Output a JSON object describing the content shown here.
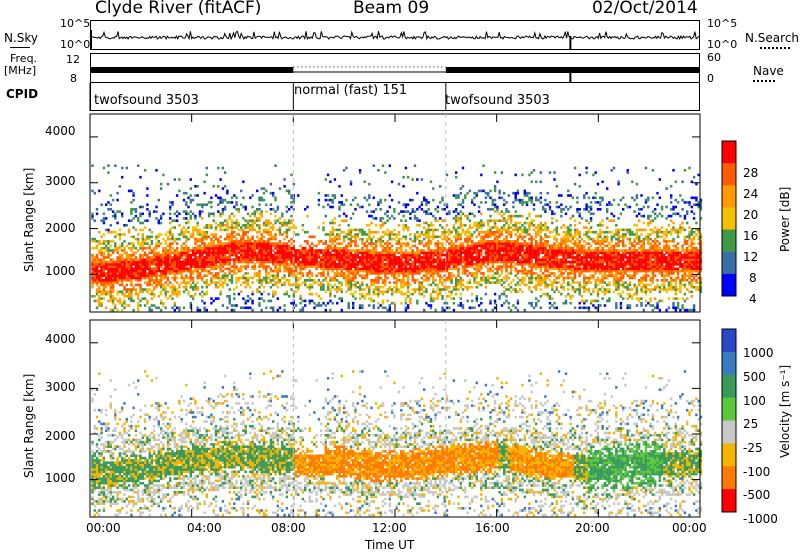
{
  "header": {
    "site": "Clyde River (fitACF)",
    "beam": "Beam 09",
    "date": "02/Oct/2014"
  },
  "top_panels": {
    "nsky_label": "N.Sky",
    "nsky_ticks": [
      "10^5",
      "10^0"
    ],
    "nsearch_label": "N.Search",
    "nsearch_ticks": [
      "10^5",
      "10^0"
    ],
    "freq_label_line1": "Freq.",
    "freq_label_line2": "[MHz]",
    "freq_ticks": [
      "12",
      "8"
    ],
    "nave_label": "Nave",
    "nave_ticks": [
      "60",
      "0"
    ],
    "cpid_label": "CPID",
    "cpid_segments": [
      {
        "label": "twofsound 3503",
        "start_h": 0,
        "end_h": 8
      },
      {
        "label": "normal (fast) 151",
        "start_h": 8,
        "end_h": 14
      },
      {
        "label": "twofsound 3503",
        "start_h": 14,
        "end_h": 24
      }
    ]
  },
  "chart_data": [
    {
      "type": "heatmap",
      "panel": "power",
      "ylabel": "Slant Range [km]",
      "ylim": [
        180,
        4500
      ],
      "yticks": [
        "1000",
        "2000",
        "3000",
        "4000"
      ],
      "xlim": [
        0,
        24
      ],
      "colorbar_label": "Power [dB]",
      "colorbar_ticks": [
        "28",
        "24",
        "20",
        "16",
        "12",
        "8",
        "4"
      ],
      "colors": [
        "#ff0000",
        "#ff5a00",
        "#ff9a00",
        "#f4c000",
        "#3e9a46",
        "#3a6ea8",
        "#0000ff"
      ],
      "description_series": [
        {
          "name": "main band",
          "x": [
            0,
            2,
            4,
            6,
            8,
            10,
            12,
            14,
            16,
            18,
            20,
            22,
            24
          ],
          "y": [
            1000,
            1100,
            1300,
            1500,
            1400,
            1300,
            1200,
            1300,
            1500,
            1350,
            1250,
            1300,
            1250
          ]
        }
      ]
    },
    {
      "type": "heatmap",
      "panel": "velocity",
      "ylabel": "Slant Range [km]",
      "ylim": [
        180,
        4500
      ],
      "yticks": [
        "1000",
        "2000",
        "3000",
        "4000"
      ],
      "xlim": [
        0,
        24
      ],
      "xticks": [
        "00:00",
        "04:00",
        "08:00",
        "12:00",
        "16:00",
        "20:00",
        "00:00"
      ],
      "xlabel": "Time UT",
      "colorbar_label": "Velocity [m s⁻¹]",
      "colorbar_ticks": [
        "1000",
        "500",
        "100",
        "25",
        "-25",
        "-100",
        "-500",
        "-1000"
      ],
      "colors": [
        "#2848c8",
        "#3a7ac0",
        "#3a9a5a",
        "#5ac83a",
        "#c8c8c8",
        "#f4b400",
        "#ff7a00",
        "#ff0000"
      ],
      "description_series": [
        {
          "name": "main band",
          "x": [
            0,
            2,
            4,
            6,
            8,
            10,
            12,
            14,
            16,
            18,
            20,
            22,
            24
          ],
          "y": [
            1100,
            1200,
            1400,
            1500,
            1400,
            1350,
            1250,
            1400,
            1500,
            1300,
            1200,
            1350,
            1300
          ]
        }
      ]
    }
  ]
}
